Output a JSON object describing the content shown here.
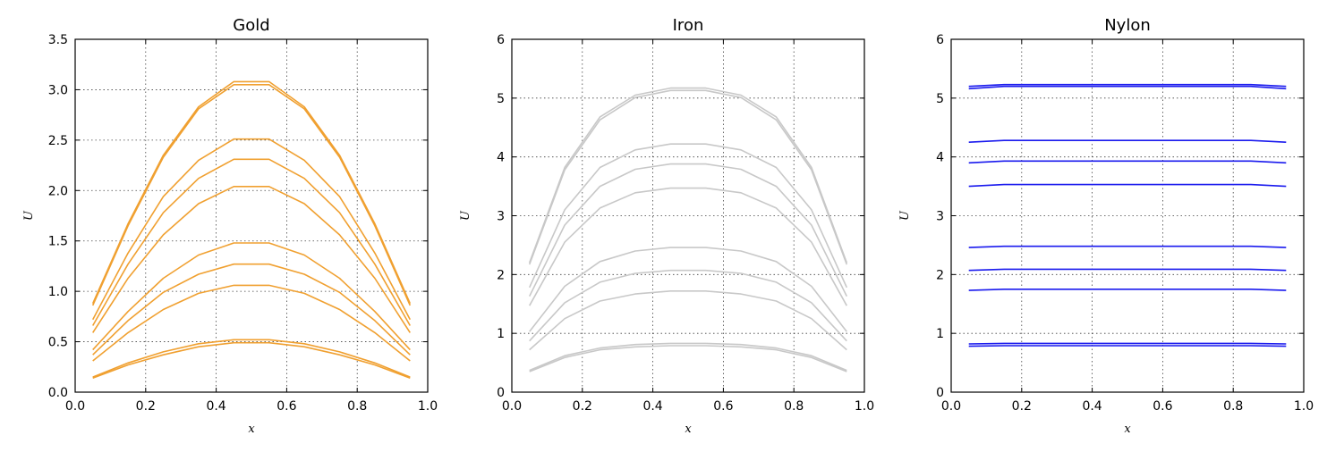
{
  "chart_data": [
    {
      "type": "line",
      "title": "Gold",
      "xlabel": "x",
      "ylabel": "U",
      "xlim": [
        0,
        1
      ],
      "ylim": [
        0,
        3.5
      ],
      "xticks": [
        "0.0",
        "0.2",
        "0.4",
        "0.6",
        "0.8",
        "1.0"
      ],
      "yticks": [
        "0.0",
        "0.5",
        "1.0",
        "1.5",
        "2.0",
        "2.5",
        "3.0",
        "3.5"
      ],
      "grid": true,
      "color": "#f0a030",
      "x": [
        0.05,
        0.15,
        0.25,
        0.35,
        0.45,
        0.55,
        0.65,
        0.75,
        0.85,
        0.95
      ],
      "series": [
        {
          "values": [
            0.88,
            1.67,
            2.35,
            2.83,
            3.08,
            3.08,
            2.83,
            2.35,
            1.67,
            0.88
          ]
        },
        {
          "values": [
            0.86,
            1.65,
            2.33,
            2.81,
            3.05,
            3.05,
            2.81,
            2.33,
            1.65,
            0.86
          ]
        },
        {
          "values": [
            0.72,
            1.38,
            1.94,
            2.3,
            2.51,
            2.51,
            2.3,
            1.94,
            1.38,
            0.72
          ]
        },
        {
          "values": [
            0.66,
            1.27,
            1.78,
            2.12,
            2.31,
            2.31,
            2.12,
            1.78,
            1.27,
            0.66
          ]
        },
        {
          "values": [
            0.59,
            1.13,
            1.56,
            1.87,
            2.04,
            2.04,
            1.87,
            1.56,
            1.13,
            0.59
          ]
        },
        {
          "values": [
            0.42,
            0.8,
            1.13,
            1.36,
            1.48,
            1.48,
            1.36,
            1.13,
            0.8,
            0.42
          ]
        },
        {
          "values": [
            0.37,
            0.71,
            0.99,
            1.17,
            1.27,
            1.27,
            1.17,
            0.99,
            0.71,
            0.37
          ]
        },
        {
          "values": [
            0.31,
            0.59,
            0.82,
            0.98,
            1.06,
            1.06,
            0.98,
            0.82,
            0.59,
            0.31
          ]
        },
        {
          "values": [
            0.15,
            0.29,
            0.4,
            0.48,
            0.52,
            0.52,
            0.48,
            0.4,
            0.29,
            0.15
          ]
        },
        {
          "values": [
            0.14,
            0.27,
            0.37,
            0.45,
            0.49,
            0.49,
            0.45,
            0.37,
            0.27,
            0.14
          ]
        }
      ]
    },
    {
      "type": "line",
      "title": "Iron",
      "xlabel": "x",
      "ylabel": "U",
      "xlim": [
        0,
        1
      ],
      "ylim": [
        0,
        6
      ],
      "xticks": [
        "0.0",
        "0.2",
        "0.4",
        "0.6",
        "0.8",
        "1.0"
      ],
      "yticks": [
        "0",
        "1",
        "2",
        "3",
        "4",
        "5",
        "6"
      ],
      "grid": true,
      "color": "#c8c8c8",
      "x": [
        0.05,
        0.15,
        0.25,
        0.35,
        0.45,
        0.55,
        0.65,
        0.75,
        0.85,
        0.95
      ],
      "series": [
        {
          "values": [
            2.2,
            3.82,
            4.68,
            5.05,
            5.17,
            5.17,
            5.05,
            4.68,
            3.82,
            2.2
          ]
        },
        {
          "values": [
            2.17,
            3.78,
            4.63,
            5.01,
            5.13,
            5.13,
            5.01,
            4.63,
            3.78,
            2.17
          ]
        },
        {
          "values": [
            1.78,
            3.1,
            3.82,
            4.12,
            4.22,
            4.22,
            4.12,
            3.82,
            3.1,
            1.78
          ]
        },
        {
          "values": [
            1.63,
            2.84,
            3.5,
            3.79,
            3.88,
            3.88,
            3.79,
            3.5,
            2.84,
            1.63
          ]
        },
        {
          "values": [
            1.47,
            2.55,
            3.13,
            3.39,
            3.47,
            3.47,
            3.39,
            3.13,
            2.55,
            1.47
          ]
        },
        {
          "values": [
            1.03,
            1.8,
            2.22,
            2.4,
            2.46,
            2.46,
            2.4,
            2.22,
            1.8,
            1.03
          ]
        },
        {
          "values": [
            0.87,
            1.52,
            1.87,
            2.02,
            2.07,
            2.07,
            2.02,
            1.87,
            1.52,
            0.87
          ]
        },
        {
          "values": [
            0.72,
            1.25,
            1.55,
            1.67,
            1.72,
            1.72,
            1.67,
            1.55,
            1.25,
            0.72
          ]
        },
        {
          "values": [
            0.37,
            0.62,
            0.75,
            0.81,
            0.83,
            0.83,
            0.81,
            0.75,
            0.62,
            0.37
          ]
        },
        {
          "values": [
            0.35,
            0.59,
            0.72,
            0.77,
            0.79,
            0.79,
            0.77,
            0.72,
            0.59,
            0.35
          ]
        }
      ]
    },
    {
      "type": "line",
      "title": "Nylon",
      "xlabel": "x",
      "ylabel": "U",
      "xlim": [
        0,
        1
      ],
      "ylim": [
        0,
        6
      ],
      "xticks": [
        "0.0",
        "0.2",
        "0.4",
        "0.6",
        "0.8",
        "1.0"
      ],
      "yticks": [
        "0",
        "1",
        "2",
        "3",
        "4",
        "5",
        "6"
      ],
      "grid": true,
      "color": "#1a1aee",
      "x": [
        0.05,
        0.15,
        0.25,
        0.35,
        0.45,
        0.55,
        0.65,
        0.75,
        0.85,
        0.95
      ],
      "series": [
        {
          "values": [
            5.2,
            5.23,
            5.23,
            5.23,
            5.23,
            5.23,
            5.23,
            5.23,
            5.23,
            5.2
          ]
        },
        {
          "values": [
            5.16,
            5.2,
            5.2,
            5.2,
            5.2,
            5.2,
            5.2,
            5.2,
            5.2,
            5.16
          ]
        },
        {
          "values": [
            4.25,
            4.28,
            4.28,
            4.28,
            4.28,
            4.28,
            4.28,
            4.28,
            4.28,
            4.25
          ]
        },
        {
          "values": [
            3.9,
            3.93,
            3.93,
            3.93,
            3.93,
            3.93,
            3.93,
            3.93,
            3.93,
            3.9
          ]
        },
        {
          "values": [
            3.5,
            3.53,
            3.53,
            3.53,
            3.53,
            3.53,
            3.53,
            3.53,
            3.53,
            3.5
          ]
        },
        {
          "values": [
            2.46,
            2.48,
            2.48,
            2.48,
            2.48,
            2.48,
            2.48,
            2.48,
            2.48,
            2.46
          ]
        },
        {
          "values": [
            2.07,
            2.09,
            2.09,
            2.09,
            2.09,
            2.09,
            2.09,
            2.09,
            2.09,
            2.07
          ]
        },
        {
          "values": [
            1.73,
            1.75,
            1.75,
            1.75,
            1.75,
            1.75,
            1.75,
            1.75,
            1.75,
            1.73
          ]
        },
        {
          "values": [
            0.82,
            0.83,
            0.83,
            0.83,
            0.83,
            0.83,
            0.83,
            0.83,
            0.83,
            0.82
          ]
        },
        {
          "values": [
            0.78,
            0.79,
            0.79,
            0.79,
            0.79,
            0.79,
            0.79,
            0.79,
            0.79,
            0.78
          ]
        }
      ]
    }
  ]
}
